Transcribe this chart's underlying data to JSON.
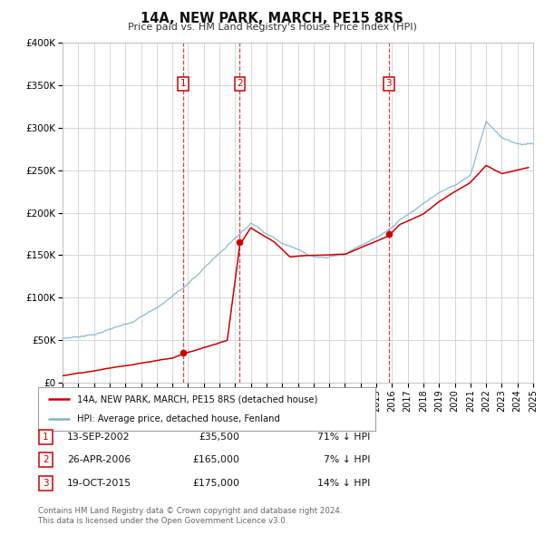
{
  "title": "14A, NEW PARK, MARCH, PE15 8RS",
  "subtitle": "Price paid vs. HM Land Registry's House Price Index (HPI)",
  "legend_line1": "14A, NEW PARK, MARCH, PE15 8RS (detached house)",
  "legend_line2": "HPI: Average price, detached house, Fenland",
  "footer_line1": "Contains HM Land Registry data © Crown copyright and database right 2024.",
  "footer_line2": "This data is licensed under the Open Government Licence v3.0.",
  "transactions": [
    {
      "num": 1,
      "date": "13-SEP-2002",
      "price": "£35,500",
      "pct": "71% ↓ HPI",
      "year": 2002.7
    },
    {
      "num": 2,
      "date": "26-APR-2006",
      "price": "£165,000",
      "pct": "7% ↓ HPI",
      "year": 2006.3
    },
    {
      "num": 3,
      "date": "19-OCT-2015",
      "price": "£175,000",
      "pct": "14% ↓ HPI",
      "year": 2015.8
    }
  ],
  "sale_dots": [
    {
      "year": 2002.7,
      "price": 35500
    },
    {
      "year": 2006.3,
      "price": 165000
    },
    {
      "year": 2015.8,
      "price": 175000
    }
  ],
  "red_color": "#cc0000",
  "blue_color": "#7fb3d3",
  "grid_color": "#d0d0d0",
  "background_color": "#ffffff",
  "ylim": [
    0,
    400000
  ],
  "xlim_start": 1995,
  "xlim_end": 2025,
  "yticks": [
    0,
    50000,
    100000,
    150000,
    200000,
    250000,
    300000,
    350000,
    400000
  ],
  "ytick_labels": [
    "£0",
    "£50K",
    "£100K",
    "£150K",
    "£200K",
    "£250K",
    "£300K",
    "£350K",
    "£400K"
  ],
  "xticks": [
    1995,
    1996,
    1997,
    1998,
    1999,
    2000,
    2001,
    2002,
    2003,
    2004,
    2005,
    2006,
    2007,
    2008,
    2009,
    2010,
    2011,
    2012,
    2013,
    2014,
    2015,
    2016,
    2017,
    2018,
    2019,
    2020,
    2021,
    2022,
    2023,
    2024,
    2025
  ],
  "hpi_knots": [
    1995,
    1997,
    1999,
    2001,
    2003,
    2005,
    2007,
    2009,
    2011,
    2013,
    2015,
    2017,
    2019,
    2021,
    2022,
    2023,
    2024,
    2025
  ],
  "hpi_vals": [
    52000,
    58000,
    68000,
    90000,
    118000,
    155000,
    193000,
    172000,
    158000,
    160000,
    178000,
    208000,
    235000,
    255000,
    320000,
    300000,
    290000,
    288000
  ],
  "red_knots": [
    1995,
    2002.0,
    2002.7,
    2005.5,
    2006.3,
    2007.0,
    2008.5,
    2009.5,
    2011,
    2013,
    2015.8,
    2016.5,
    2018,
    2019,
    2021,
    2022,
    2023,
    2024,
    2024.7
  ],
  "red_vals": [
    8000,
    30000,
    35500,
    52000,
    165000,
    185000,
    168000,
    150000,
    152000,
    153000,
    175000,
    188000,
    200000,
    215000,
    238000,
    258000,
    248000,
    252000,
    255000
  ]
}
